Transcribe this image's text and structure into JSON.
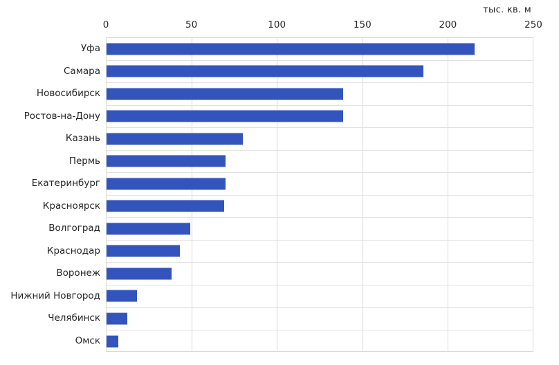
{
  "chart_data": {
    "type": "bar",
    "orientation": "horizontal",
    "title": "",
    "xlabel": "тыс. кв. м",
    "ylabel": "",
    "categories": [
      "Уфа",
      "Самара",
      "Новосибирск",
      "Ростов-на-Дону",
      "Казань",
      "Пермь",
      "Екатеринбург",
      "Красноярск",
      "Волгоград",
      "Краснодар",
      "Воронеж",
      "Нижний Новгород",
      "Челябинск",
      "Омск"
    ],
    "values": [
      216,
      186,
      139,
      139,
      80,
      70,
      70,
      69,
      49,
      43,
      38,
      18,
      12,
      7
    ],
    "xlim": [
      0,
      250
    ],
    "x_ticks": [
      "0",
      "50",
      "100",
      "150",
      "200",
      "250"
    ],
    "grid": true,
    "legend": false,
    "bar_color": "#3354bc",
    "gridline_color": "#d9d9d9",
    "text_color": "#262626",
    "background_color": "#ffffff"
  }
}
